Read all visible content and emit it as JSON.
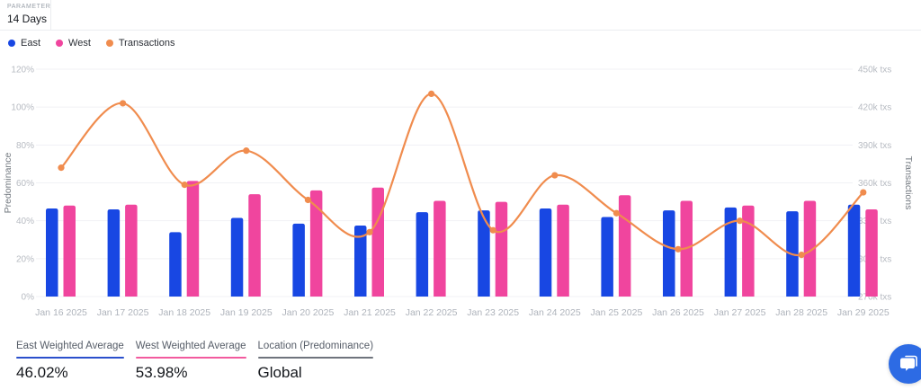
{
  "header": {
    "parameter_label": "PARAMETER",
    "parameter_value": "14 Days"
  },
  "legend": {
    "items": [
      {
        "label": "East",
        "color": "#1847e3"
      },
      {
        "label": "West",
        "color": "#f0459e"
      },
      {
        "label": "Transactions",
        "color": "#f08c4e"
      }
    ]
  },
  "chart_data": {
    "type": "bar+line",
    "categories": [
      "Jan 16 2025",
      "Jan 17 2025",
      "Jan 18 2025",
      "Jan 19 2025",
      "Jan 20 2025",
      "Jan 21 2025",
      "Jan 22 2025",
      "Jan 23 2025",
      "Jan 24 2025",
      "Jan 25 2025",
      "Jan 26 2025",
      "Jan 27 2025",
      "Jan 28 2025",
      "Jan 29 2025"
    ],
    "series": [
      {
        "name": "East",
        "type": "bar",
        "yaxis": "left",
        "unit": "%",
        "color": "#1847e3",
        "values": [
          46.5,
          46,
          34,
          41.5,
          38.5,
          37.5,
          44.5,
          45.5,
          46.5,
          42,
          45.5,
          47,
          45,
          48.5
        ]
      },
      {
        "name": "West",
        "type": "bar",
        "yaxis": "left",
        "unit": "%",
        "color": "#f0459e",
        "values": [
          48,
          48.5,
          61,
          54,
          56,
          57.5,
          50.5,
          50,
          48.5,
          53.5,
          50.5,
          48,
          50.5,
          46
        ]
      },
      {
        "name": "Transactions",
        "type": "line",
        "yaxis": "right",
        "unit": "txs",
        "color": "#f08c4e",
        "smooth": true,
        "values": [
          372000,
          423000,
          358500,
          385500,
          346500,
          321000,
          430500,
          322500,
          366000,
          336000,
          307500,
          330000,
          303000,
          352500
        ]
      }
    ],
    "left_axis": {
      "title": "Predominance",
      "min": 0,
      "max": 120,
      "ticks": [
        "0%",
        "20%",
        "40%",
        "60%",
        "80%",
        "100%",
        "120%"
      ]
    },
    "right_axis": {
      "title": "Transactions",
      "min": 270000,
      "max": 450000,
      "ticks": [
        "270k txs",
        "300k txs",
        "330k txs",
        "360k txs",
        "390k txs",
        "420k txs",
        "450k txs"
      ]
    },
    "grid": "horizontal-only",
    "legend_position": "top-left"
  },
  "footer": {
    "stats": [
      {
        "label": "East Weighted Average",
        "value": "46.02%",
        "underline_color": "#2b50cc"
      },
      {
        "label": "West Weighted Average",
        "value": "53.98%",
        "underline_color": "#f25a9e"
      },
      {
        "label": "Location (Predominance)",
        "value": "Global",
        "underline_color": "#6f747d"
      }
    ]
  },
  "chat": {
    "color": "#2d6be4"
  },
  "colors": {
    "gridline": "#f0f1f4",
    "tick_label": "#b7bbc2",
    "axis_title": "#72787f",
    "x_label": "#aeb3bb"
  }
}
